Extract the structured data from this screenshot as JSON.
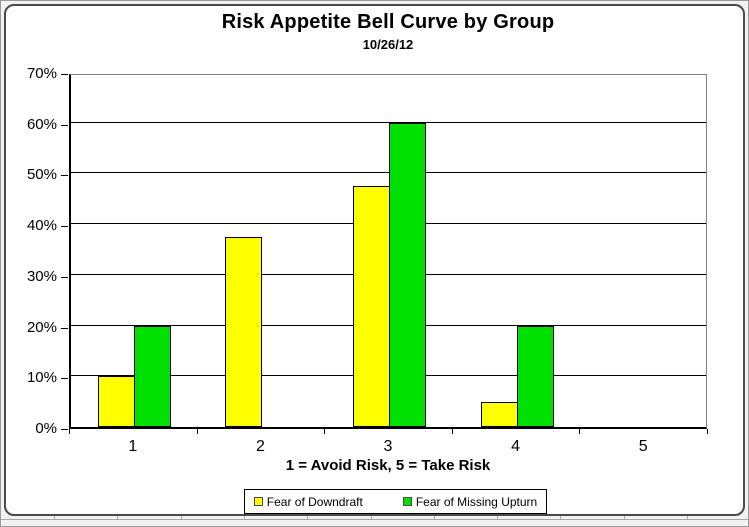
{
  "chart_data": {
    "type": "bar",
    "title": "Risk Appetite Bell Curve by Group",
    "subtitle": "10/26/12",
    "categories": [
      "1",
      "2",
      "3",
      "4",
      "5"
    ],
    "series": [
      {
        "name": "Fear of Downdraft",
        "color": "#FFFF00",
        "values": [
          10,
          37.5,
          47.5,
          5,
          0
        ]
      },
      {
        "name": "Fear of Missing Upturn",
        "color": "#00E000",
        "values": [
          20,
          0,
          60,
          20,
          0
        ]
      }
    ],
    "xlabel": "1 = Avoid Risk, 5 = Take Risk",
    "ylabel": "",
    "ylim": [
      0,
      70
    ],
    "ytick_step": 10,
    "ytick_labels": [
      "0%",
      "10%",
      "20%",
      "30%",
      "40%",
      "50%",
      "60%",
      "70%"
    ],
    "grid": true,
    "legend_position": "bottom",
    "bar_border_color": "#000000",
    "plot_border_color": "#808080"
  }
}
